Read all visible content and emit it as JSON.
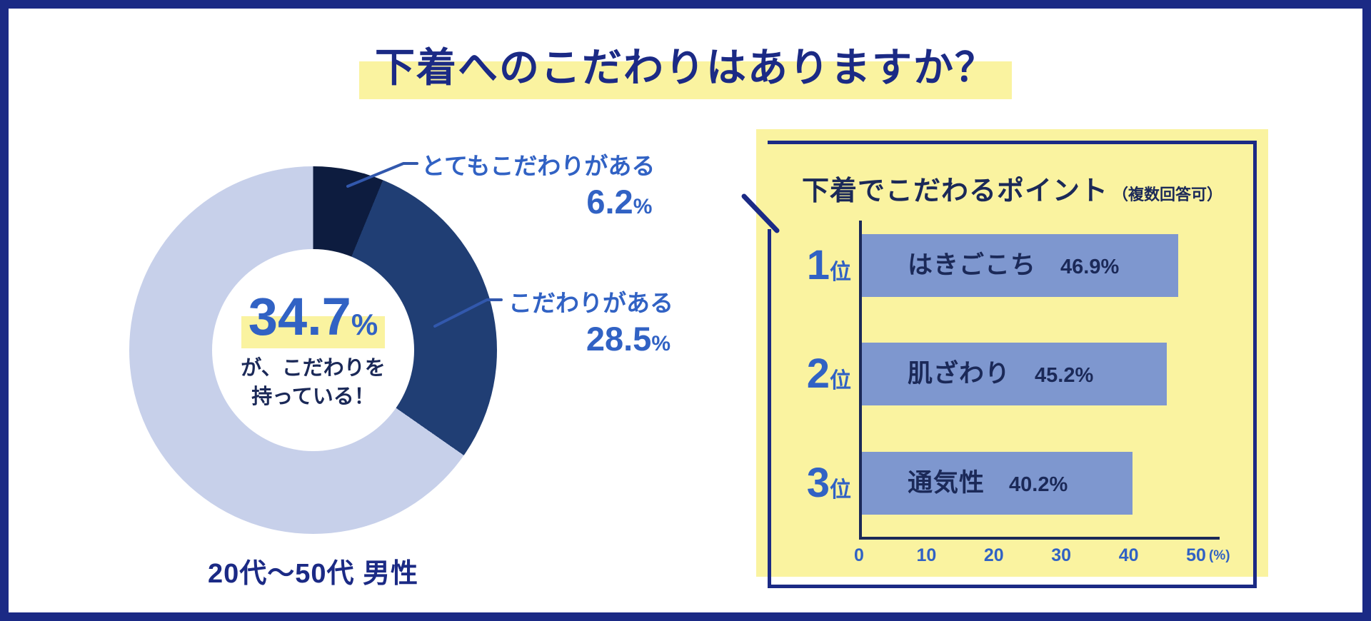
{
  "header": {
    "title": "下着へのこだわりはありますか？"
  },
  "colors": {
    "frame_navy": "#1b2a85",
    "accent_blue": "#3162c4",
    "panel_yellow": "#faf3a0",
    "highlight_yellow": "#faf3a0",
    "dark_text": "#1b2958",
    "bar_blue": "#7e97cf",
    "callout_line": "#3258ad",
    "slice_dark": "#0d1c3f",
    "slice_navy": "#203e74",
    "slice_light": "#c7d0ea"
  },
  "chart_data": [
    {
      "type": "pie",
      "donut": true,
      "title": "下着へのこだわりはありますか？",
      "slices": [
        {
          "label": "とてもこだわりがある",
          "value": 6.2,
          "value_label": "6.2",
          "unit": "%",
          "color": "#0d1c3f"
        },
        {
          "label": "こだわりがある",
          "value": 28.5,
          "value_label": "28.5",
          "unit": "%",
          "color": "#203e74"
        },
        {
          "label": "",
          "value": 65.3,
          "value_label": "",
          "unit": "",
          "color": "#c7d0ea"
        }
      ],
      "center_value": "34.7",
      "center_unit": "%",
      "center_caption_line1": "が、こだわりを",
      "center_caption_line2": "持っている！",
      "footer": "20代〜50代 男性",
      "start_angle_deg": 0,
      "legend_position": "callouts-right"
    },
    {
      "type": "bar",
      "orientation": "horizontal",
      "title": "下着でこだわるポイント",
      "subtitle": "（複数回答可）",
      "rank_labels": [
        "1",
        "2",
        "3"
      ],
      "rank_unit": "位",
      "categories": [
        "はきごこち",
        "肌ざわり",
        "通気性"
      ],
      "values": [
        46.9,
        45.2,
        40.2
      ],
      "value_labels": [
        "46.9%",
        "45.2%",
        "40.2%"
      ],
      "xlim": [
        0,
        50
      ],
      "xticks": [
        "0",
        "10",
        "20",
        "30",
        "40",
        "50"
      ],
      "x_unit_label": "(%)",
      "bar_color": "#7e97cf",
      "grid": false
    }
  ]
}
